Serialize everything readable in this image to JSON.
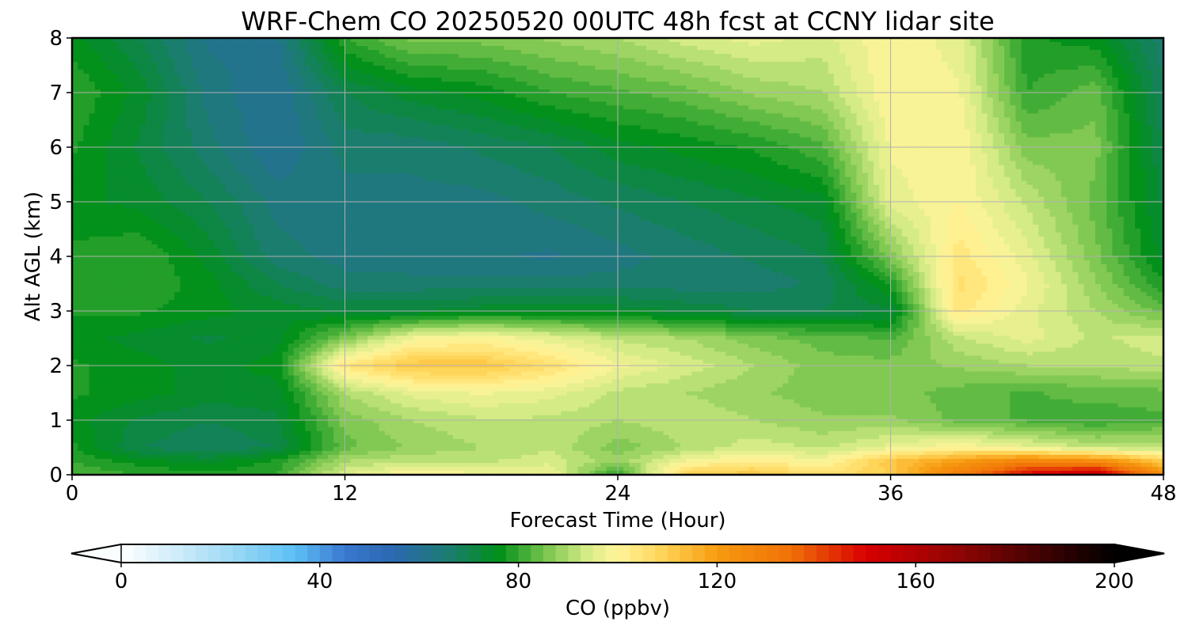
{
  "chart_data": {
    "type": "heatmap",
    "title": "WRF-Chem CO  20250520 00UTC 48h fcst at CCNY lidar site",
    "xlabel": "Forecast Time (Hour)",
    "ylabel": "Alt AGL (km)",
    "xlim": [
      0,
      48
    ],
    "ylim": [
      0,
      8
    ],
    "x_ticks": [
      0,
      12,
      24,
      36,
      48
    ],
    "y_ticks": [
      0,
      1,
      2,
      3,
      4,
      5,
      6,
      7,
      8
    ],
    "grid": true,
    "x": [
      0,
      3,
      6,
      9,
      12,
      15,
      18,
      21,
      24,
      27,
      30,
      33,
      36,
      39,
      42,
      45,
      48
    ],
    "y": [
      0,
      0.25,
      0.5,
      1,
      1.5,
      2,
      2.5,
      3,
      3.5,
      4,
      5,
      6,
      7,
      8
    ],
    "z": [
      [
        82,
        80,
        78,
        80,
        95,
        100,
        98,
        98,
        78,
        110,
        112,
        106,
        110,
        130,
        150,
        158,
        125
      ],
      [
        80,
        76,
        74,
        78,
        90,
        92,
        92,
        94,
        88,
        98,
        102,
        98,
        112,
        120,
        128,
        125,
        110
      ],
      [
        78,
        70,
        68,
        70,
        84,
        88,
        90,
        92,
        86,
        90,
        94,
        92,
        96,
        100,
        96,
        92,
        92
      ],
      [
        76,
        72,
        70,
        72,
        86,
        90,
        92,
        92,
        90,
        92,
        90,
        88,
        88,
        84,
        82,
        80,
        82
      ],
      [
        78,
        76,
        74,
        74,
        90,
        96,
        98,
        96,
        92,
        90,
        88,
        86,
        86,
        84,
        82,
        84,
        84
      ],
      [
        78,
        76,
        74,
        76,
        104,
        112,
        112,
        106,
        98,
        94,
        90,
        86,
        86,
        88,
        90,
        90,
        92
      ],
      [
        76,
        74,
        72,
        74,
        86,
        98,
        100,
        96,
        92,
        90,
        86,
        84,
        82,
        92,
        96,
        92,
        94
      ],
      [
        78,
        78,
        76,
        74,
        72,
        72,
        74,
        74,
        74,
        72,
        70,
        70,
        72,
        104,
        96,
        90,
        84
      ],
      [
        78,
        80,
        76,
        70,
        66,
        66,
        66,
        66,
        66,
        66,
        66,
        68,
        78,
        106,
        98,
        88,
        78
      ],
      [
        78,
        80,
        74,
        66,
        64,
        63,
        63,
        62,
        64,
        66,
        68,
        70,
        86,
        104,
        96,
        86,
        74
      ],
      [
        76,
        74,
        70,
        64,
        64,
        64,
        64,
        66,
        68,
        70,
        72,
        74,
        96,
        100,
        92,
        84,
        72
      ],
      [
        78,
        72,
        66,
        60,
        66,
        66,
        68,
        70,
        74,
        76,
        78,
        82,
        98,
        100,
        86,
        86,
        70
      ],
      [
        80,
        74,
        64,
        60,
        70,
        74,
        76,
        80,
        82,
        84,
        88,
        90,
        100,
        98,
        80,
        84,
        68
      ],
      [
        76,
        70,
        62,
        62,
        80,
        86,
        86,
        88,
        90,
        94,
        96,
        94,
        100,
        96,
        78,
        76,
        66
      ]
    ],
    "colorbar": {
      "label": "CO  (ppbv)",
      "min": 0,
      "max": 200,
      "step": 2.5,
      "ticks": [
        0,
        40,
        80,
        120,
        160,
        200
      ],
      "extend": "both",
      "colors": [
        {
          "v": 0,
          "c": "#ffffff"
        },
        {
          "v": 20,
          "c": "#a8ddf5"
        },
        {
          "v": 35,
          "c": "#5cc0f5"
        },
        {
          "v": 45,
          "c": "#3a78d0"
        },
        {
          "v": 55,
          "c": "#2a68b0"
        },
        {
          "v": 65,
          "c": "#1f7a78"
        },
        {
          "v": 76,
          "c": "#00901a"
        },
        {
          "v": 86,
          "c": "#7ec850"
        },
        {
          "v": 94,
          "c": "#d8ec88"
        },
        {
          "v": 100,
          "c": "#fff59a"
        },
        {
          "v": 110,
          "c": "#ffd050"
        },
        {
          "v": 120,
          "c": "#f79b10"
        },
        {
          "v": 135,
          "c": "#f07008"
        },
        {
          "v": 150,
          "c": "#d80000"
        },
        {
          "v": 170,
          "c": "#8a0404"
        },
        {
          "v": 185,
          "c": "#420202"
        },
        {
          "v": 200,
          "c": "#000000"
        }
      ]
    }
  }
}
